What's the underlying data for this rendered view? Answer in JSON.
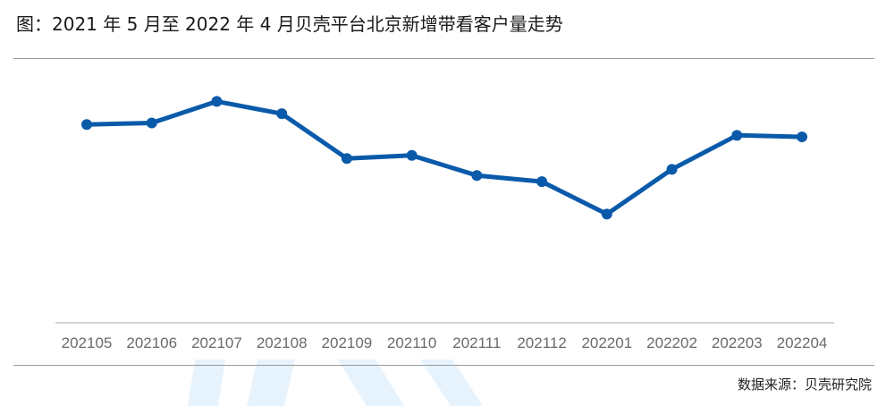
{
  "title": "图：2021 年 5 月至 2022 年 4 月贝壳平台北京新增带看客户量走势",
  "source": "数据来源：贝壳研究院",
  "colors": {
    "line": "#0a5aaa",
    "axis": "#d4d4d4",
    "watermark": "#e6f3fc"
  },
  "chart_data": {
    "type": "line",
    "title": "图：2021 年 5 月至 2022 年 4 月贝壳平台北京新增带看客户量走势",
    "xlabel": "",
    "ylabel": "",
    "categories": [
      "202105",
      "202106",
      "202107",
      "202108",
      "202109",
      "202110",
      "202111",
      "202112",
      "202201",
      "202202",
      "202203",
      "202204"
    ],
    "series": [
      {
        "values": [
          0.68,
          0.69,
          0.83,
          0.75,
          0.46,
          0.48,
          0.35,
          0.31,
          0.1,
          0.39,
          0.61,
          0.6
        ]
      }
    ],
    "ylim": [
      -0.5,
      1.0
    ],
    "y_axis_visible": false,
    "grid": false,
    "legend": "none",
    "markers": true
  }
}
